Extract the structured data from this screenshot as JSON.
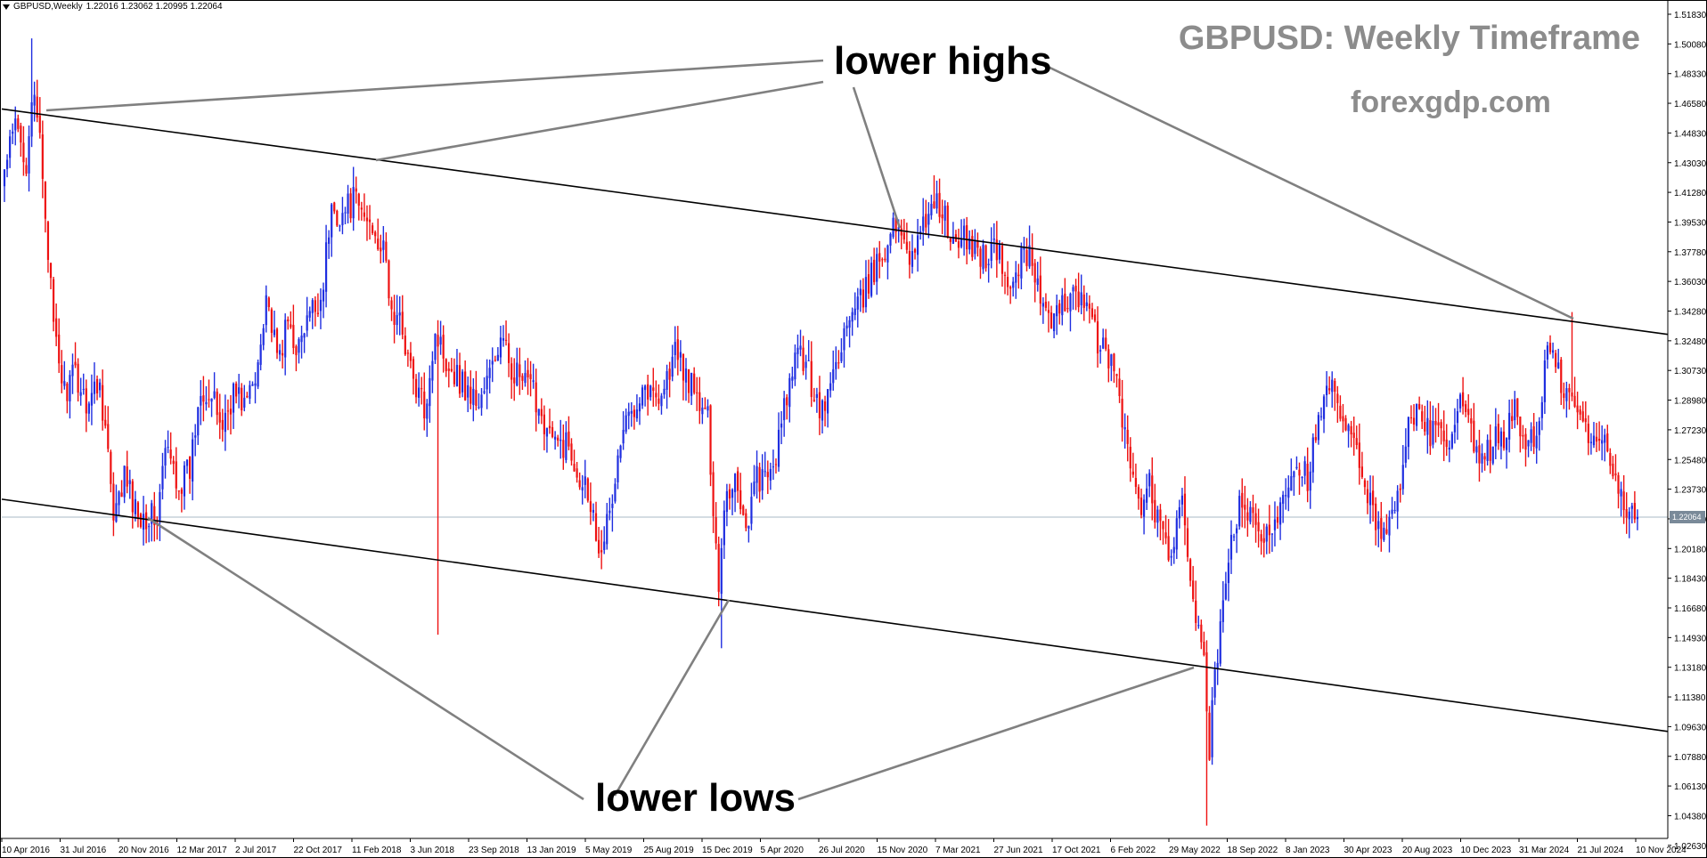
{
  "header": {
    "symbol": "GBPUSD,Weekly",
    "ohlc": "1.22016 1.23062 1.20995 1.22064"
  },
  "title": "GBPUSD: Weekly Timeframe",
  "brand": "forexgdp.com",
  "annotations": {
    "upper": "lower highs",
    "lower": "lower lows"
  },
  "colors": {
    "bull": "#1f2ee0",
    "bear": "#ee1111",
    "trendline": "#000000",
    "pointer": "#808080",
    "title_text": "#8c8c8c",
    "price_line": "#a9b8c6",
    "price_tag_bg": "#7a8a99"
  },
  "chart_data": {
    "type": "candlestick",
    "symbol": "GBPUSD",
    "timeframe": "Weekly",
    "grid": false,
    "y_ticks": [
      "1.51830",
      "1.50080",
      "1.48330",
      "1.46580",
      "1.44830",
      "1.43030",
      "1.41280",
      "1.39530",
      "1.37780",
      "1.36030",
      "1.34280",
      "1.32480",
      "1.30730",
      "1.28980",
      "1.27230",
      "1.25480",
      "1.23730",
      "1.21980",
      "1.20180",
      "1.18430",
      "1.16680",
      "1.14930",
      "1.13180",
      "1.11380",
      "1.09630",
      "1.07880",
      "1.06130",
      "1.04380",
      "1.02630"
    ],
    "ylim": [
      1.0245,
      1.525
    ],
    "x_ticks": [
      "10 Apr 2016",
      "31 Jul 2016",
      "20 Nov 2016",
      "12 Mar 2017",
      "2 Jul 2017",
      "22 Oct 2017",
      "11 Feb 2018",
      "3 Jun 2018",
      "23 Sep 2018",
      "13 Jan 2019",
      "5 May 2019",
      "25 Aug 2019",
      "15 Dec 2019",
      "5 Apr 2020",
      "26 Jul 2020",
      "15 Nov 2020",
      "7 Mar 2021",
      "27 Jun 2021",
      "17 Oct 2021",
      "6 Feb 2022",
      "29 May 2022",
      "18 Sep 2022",
      "8 Jan 2023",
      "30 Apr 2023",
      "20 Aug 2023",
      "10 Dec 2023",
      "31 Mar 2024",
      "21 Jul 2024",
      "10 Nov 2024"
    ],
    "last_price": "1.22064",
    "last_price_value": 1.22064,
    "price_path": [
      [
        0,
        1.425
      ],
      [
        4,
        1.452
      ],
      [
        8,
        1.432
      ],
      [
        10,
        1.47
      ],
      [
        13,
        1.445
      ],
      [
        16,
        1.38
      ],
      [
        18,
        1.33
      ],
      [
        22,
        1.295
      ],
      [
        26,
        1.305
      ],
      [
        30,
        1.29
      ],
      [
        35,
        1.3
      ],
      [
        38,
        1.26
      ],
      [
        40,
        1.215
      ],
      [
        44,
        1.245
      ],
      [
        48,
        1.225
      ],
      [
        52,
        1.222
      ],
      [
        56,
        1.22
      ],
      [
        59,
        1.26
      ],
      [
        62,
        1.25
      ],
      [
        64,
        1.24
      ],
      [
        68,
        1.248
      ],
      [
        72,
        1.3
      ],
      [
        76,
        1.29
      ],
      [
        80,
        1.275
      ],
      [
        84,
        1.295
      ],
      [
        88,
        1.288
      ],
      [
        92,
        1.3
      ],
      [
        96,
        1.355
      ],
      [
        100,
        1.312
      ],
      [
        104,
        1.335
      ],
      [
        108,
        1.32
      ],
      [
        112,
        1.34
      ],
      [
        116,
        1.35
      ],
      [
        120,
        1.402
      ],
      [
        124,
        1.4
      ],
      [
        128,
        1.408
      ],
      [
        132,
        1.398
      ],
      [
        136,
        1.392
      ],
      [
        140,
        1.37
      ],
      [
        142,
        1.34
      ],
      [
        146,
        1.333
      ],
      [
        150,
        1.3
      ],
      [
        154,
        1.285
      ],
      [
        158,
        1.33
      ],
      [
        162,
        1.315
      ],
      [
        166,
        1.305
      ],
      [
        170,
        1.295
      ],
      [
        174,
        1.288
      ],
      [
        178,
        1.305
      ],
      [
        182,
        1.325
      ],
      [
        186,
        1.31
      ],
      [
        190,
        1.3
      ],
      [
        194,
        1.295
      ],
      [
        198,
        1.278
      ],
      [
        202,
        1.262
      ],
      [
        206,
        1.265
      ],
      [
        210,
        1.25
      ],
      [
        214,
        1.238
      ],
      [
        218,
        1.205
      ],
      [
        222,
        1.22
      ],
      [
        226,
        1.265
      ],
      [
        230,
        1.285
      ],
      [
        234,
        1.3
      ],
      [
        238,
        1.292
      ],
      [
        242,
        1.298
      ],
      [
        246,
        1.318
      ],
      [
        250,
        1.305
      ],
      [
        254,
        1.29
      ],
      [
        258,
        1.278
      ],
      [
        262,
        1.18
      ],
      [
        264,
        1.23
      ],
      [
        268,
        1.245
      ],
      [
        272,
        1.215
      ],
      [
        276,
        1.245
      ],
      [
        280,
        1.24
      ],
      [
        284,
        1.265
      ],
      [
        288,
        1.3
      ],
      [
        292,
        1.32
      ],
      [
        296,
        1.3
      ],
      [
        300,
        1.282
      ],
      [
        304,
        1.305
      ],
      [
        308,
        1.33
      ],
      [
        312,
        1.34
      ],
      [
        316,
        1.355
      ],
      [
        320,
        1.37
      ],
      [
        324,
        1.385
      ],
      [
        328,
        1.395
      ],
      [
        332,
        1.378
      ],
      [
        336,
        1.385
      ],
      [
        340,
        1.41
      ],
      [
        344,
        1.402
      ],
      [
        348,
        1.38
      ],
      [
        352,
        1.385
      ],
      [
        356,
        1.38
      ],
      [
        360,
        1.375
      ],
      [
        364,
        1.38
      ],
      [
        368,
        1.355
      ],
      [
        372,
        1.37
      ],
      [
        376,
        1.38
      ],
      [
        380,
        1.35
      ],
      [
        384,
        1.33
      ],
      [
        388,
        1.345
      ],
      [
        392,
        1.36
      ],
      [
        396,
        1.345
      ],
      [
        400,
        1.33
      ],
      [
        404,
        1.315
      ],
      [
        408,
        1.305
      ],
      [
        412,
        1.26
      ],
      [
        416,
        1.225
      ],
      [
        420,
        1.24
      ],
      [
        424,
        1.21
      ],
      [
        428,
        1.2
      ],
      [
        432,
        1.225
      ],
      [
        436,
        1.175
      ],
      [
        438,
        1.155
      ],
      [
        440,
        1.13
      ],
      [
        442,
        1.085
      ],
      [
        444,
        1.125
      ],
      [
        446,
        1.15
      ],
      [
        450,
        1.21
      ],
      [
        454,
        1.23
      ],
      [
        458,
        1.215
      ],
      [
        462,
        1.205
      ],
      [
        466,
        1.22
      ],
      [
        470,
        1.24
      ],
      [
        474,
        1.255
      ],
      [
        478,
        1.245
      ],
      [
        482,
        1.275
      ],
      [
        486,
        1.3
      ],
      [
        490,
        1.278
      ],
      [
        494,
        1.265
      ],
      [
        498,
        1.25
      ],
      [
        502,
        1.22
      ],
      [
        506,
        1.215
      ],
      [
        510,
        1.22
      ],
      [
        514,
        1.27
      ],
      [
        518,
        1.28
      ],
      [
        522,
        1.272
      ],
      [
        526,
        1.27
      ],
      [
        530,
        1.26
      ],
      [
        534,
        1.285
      ],
      [
        538,
        1.27
      ],
      [
        542,
        1.25
      ],
      [
        546,
        1.265
      ],
      [
        550,
        1.27
      ],
      [
        554,
        1.282
      ],
      [
        558,
        1.265
      ],
      [
        562,
        1.27
      ],
      [
        566,
        1.32
      ],
      [
        570,
        1.305
      ],
      [
        574,
        1.29
      ],
      [
        578,
        1.28
      ],
      [
        582,
        1.263
      ],
      [
        586,
        1.27
      ],
      [
        590,
        1.25
      ],
      [
        593,
        1.238
      ],
      [
        596,
        1.22
      ]
    ],
    "spikes": [
      [
        10,
        1.504
      ],
      [
        159,
        1.151
      ],
      [
        223,
        1.212
      ],
      [
        263,
        1.143
      ],
      [
        341,
        1.423
      ],
      [
        441,
        1.038
      ],
      [
        575,
        1.342
      ]
    ],
    "trendlines": [
      {
        "name": "upper-channel",
        "points": [
          [
            0,
            1.462
          ],
          [
            600,
            1.331
          ]
        ]
      },
      {
        "name": "lower-channel",
        "points": [
          [
            0,
            1.231
          ],
          [
            600,
            1.096
          ]
        ]
      }
    ]
  }
}
